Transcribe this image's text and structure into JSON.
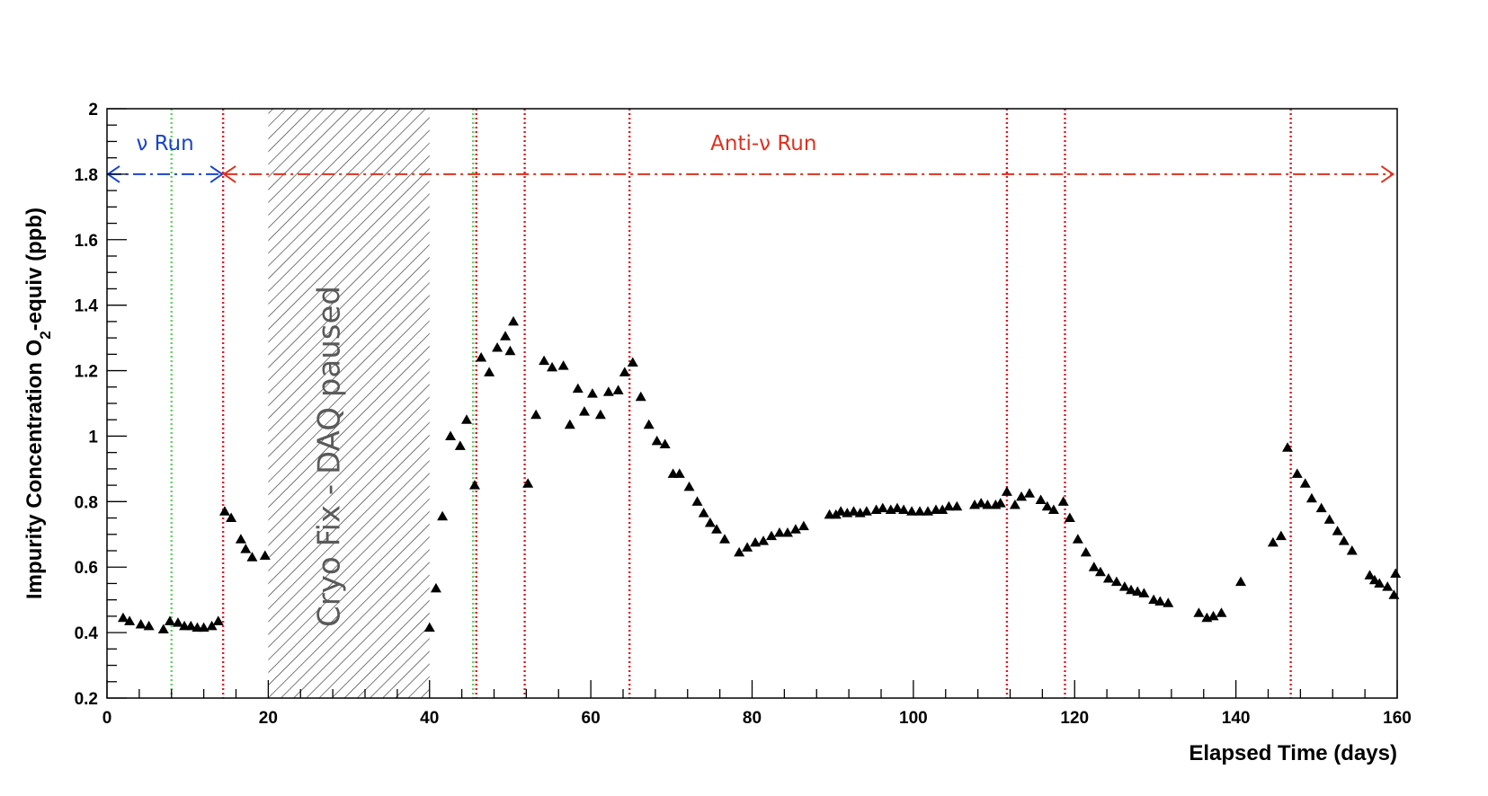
{
  "chart_data": {
    "type": "scatter",
    "xlabel": "Elapsed Time (days)",
    "ylabel_parts": [
      "Impurity Concentration O",
      "2",
      "-equiv (ppb)"
    ],
    "xlim": [
      0,
      160
    ],
    "ylim": [
      0.2,
      2.0
    ],
    "x_ticks": [
      0,
      20,
      40,
      60,
      80,
      100,
      120,
      140,
      160
    ],
    "x_tick_labels": [
      "0",
      "20",
      "40",
      "60",
      "80",
      "100",
      "120",
      "140",
      "160"
    ],
    "y_ticks": [
      0.2,
      0.4,
      0.6,
      0.8,
      1.0,
      1.2,
      1.4,
      1.6,
      1.8,
      2.0
    ],
    "y_tick_labels": [
      "0.2",
      "0.4",
      "0.6",
      "0.8",
      "1",
      "1.2",
      "1.4",
      "1.6",
      "1.8",
      "2"
    ],
    "marker": "triangle",
    "marker_color": "#000000",
    "points": [
      [
        2.0,
        0.445
      ],
      [
        2.8,
        0.435
      ],
      [
        4.2,
        0.425
      ],
      [
        5.2,
        0.42
      ],
      [
        7.0,
        0.41
      ],
      [
        7.8,
        0.435
      ],
      [
        8.8,
        0.43
      ],
      [
        9.6,
        0.42
      ],
      [
        10.4,
        0.42
      ],
      [
        11.2,
        0.415
      ],
      [
        12.0,
        0.415
      ],
      [
        13.0,
        0.42
      ],
      [
        13.8,
        0.435
      ],
      [
        14.6,
        0.77
      ],
      [
        15.4,
        0.75
      ],
      [
        16.6,
        0.685
      ],
      [
        17.2,
        0.655
      ],
      [
        18.0,
        0.63
      ],
      [
        19.6,
        0.635
      ],
      [
        40.0,
        0.415
      ],
      [
        40.8,
        0.535
      ],
      [
        41.6,
        0.755
      ],
      [
        42.6,
        1.0
      ],
      [
        43.8,
        0.97
      ],
      [
        44.6,
        1.05
      ],
      [
        45.6,
        0.85
      ],
      [
        46.4,
        1.24
      ],
      [
        47.4,
        1.195
      ],
      [
        48.4,
        1.27
      ],
      [
        49.4,
        1.305
      ],
      [
        50.0,
        1.26
      ],
      [
        50.4,
        1.35
      ],
      [
        52.2,
        0.855
      ],
      [
        53.2,
        1.065
      ],
      [
        54.2,
        1.23
      ],
      [
        55.2,
        1.21
      ],
      [
        56.6,
        1.215
      ],
      [
        57.4,
        1.035
      ],
      [
        58.4,
        1.145
      ],
      [
        59.2,
        1.075
      ],
      [
        60.2,
        1.13
      ],
      [
        61.2,
        1.065
      ],
      [
        62.2,
        1.135
      ],
      [
        63.4,
        1.14
      ],
      [
        64.2,
        1.195
      ],
      [
        65.2,
        1.225
      ],
      [
        66.2,
        1.12
      ],
      [
        67.2,
        1.035
      ],
      [
        68.2,
        0.985
      ],
      [
        69.2,
        0.975
      ],
      [
        70.2,
        0.885
      ],
      [
        71.0,
        0.885
      ],
      [
        72.2,
        0.845
      ],
      [
        73.2,
        0.8
      ],
      [
        74.0,
        0.765
      ],
      [
        74.8,
        0.735
      ],
      [
        75.6,
        0.715
      ],
      [
        76.6,
        0.685
      ],
      [
        78.4,
        0.645
      ],
      [
        79.4,
        0.66
      ],
      [
        80.4,
        0.675
      ],
      [
        81.4,
        0.68
      ],
      [
        82.4,
        0.695
      ],
      [
        83.4,
        0.705
      ],
      [
        84.4,
        0.705
      ],
      [
        85.4,
        0.715
      ],
      [
        86.4,
        0.725
      ],
      [
        89.6,
        0.76
      ],
      [
        90.4,
        0.76
      ],
      [
        91.0,
        0.77
      ],
      [
        91.8,
        0.765
      ],
      [
        92.6,
        0.77
      ],
      [
        93.4,
        0.765
      ],
      [
        94.2,
        0.77
      ],
      [
        95.4,
        0.775
      ],
      [
        96.2,
        0.78
      ],
      [
        97.2,
        0.775
      ],
      [
        98.0,
        0.78
      ],
      [
        98.8,
        0.775
      ],
      [
        99.8,
        0.77
      ],
      [
        100.8,
        0.77
      ],
      [
        101.8,
        0.77
      ],
      [
        102.8,
        0.775
      ],
      [
        103.6,
        0.775
      ],
      [
        104.4,
        0.785
      ],
      [
        105.4,
        0.785
      ],
      [
        107.6,
        0.79
      ],
      [
        108.4,
        0.795
      ],
      [
        109.2,
        0.79
      ],
      [
        110.2,
        0.79
      ],
      [
        110.8,
        0.795
      ],
      [
        111.6,
        0.83
      ],
      [
        112.6,
        0.79
      ],
      [
        113.4,
        0.815
      ],
      [
        114.4,
        0.825
      ],
      [
        115.8,
        0.805
      ],
      [
        116.6,
        0.785
      ],
      [
        117.4,
        0.775
      ],
      [
        118.6,
        0.8
      ],
      [
        119.4,
        0.75
      ],
      [
        120.4,
        0.685
      ],
      [
        121.4,
        0.645
      ],
      [
        122.4,
        0.6
      ],
      [
        123.2,
        0.585
      ],
      [
        124.2,
        0.565
      ],
      [
        125.2,
        0.555
      ],
      [
        126.2,
        0.54
      ],
      [
        127.0,
        0.53
      ],
      [
        127.8,
        0.525
      ],
      [
        128.6,
        0.52
      ],
      [
        129.8,
        0.5
      ],
      [
        130.6,
        0.495
      ],
      [
        131.6,
        0.49
      ],
      [
        135.4,
        0.46
      ],
      [
        136.4,
        0.445
      ],
      [
        137.2,
        0.45
      ],
      [
        138.2,
        0.46
      ],
      [
        140.6,
        0.555
      ],
      [
        144.6,
        0.675
      ],
      [
        145.6,
        0.695
      ],
      [
        146.4,
        0.965
      ],
      [
        147.6,
        0.885
      ],
      [
        148.6,
        0.855
      ],
      [
        149.4,
        0.81
      ],
      [
        150.6,
        0.78
      ],
      [
        151.6,
        0.745
      ],
      [
        152.6,
        0.71
      ],
      [
        153.4,
        0.68
      ],
      [
        154.4,
        0.65
      ],
      [
        156.6,
        0.575
      ],
      [
        157.2,
        0.56
      ],
      [
        157.8,
        0.55
      ],
      [
        158.8,
        0.54
      ],
      [
        159.6,
        0.515
      ],
      [
        159.8,
        0.58
      ]
    ],
    "red_dotted_lines_x": [
      14.4,
      45.8,
      51.8,
      64.8,
      111.6,
      118.8,
      146.8
    ],
    "green_dotted_lines_x": [
      8.0,
      45.4
    ],
    "shaded_region": {
      "x_range": [
        20,
        40
      ],
      "label": "Cryo Fix - DAQ paused"
    },
    "runs": [
      {
        "label": "ν Run",
        "x_range": [
          0,
          14.4
        ],
        "y": 1.8,
        "color": "#1a44cc"
      },
      {
        "label": "Anti-ν Run",
        "x_range": [
          14.4,
          159.6
        ],
        "y": 1.8,
        "color": "#e0301e"
      }
    ],
    "colors": {
      "red_line": "#e8151f",
      "green_line": "#5fd35f",
      "shading": "#333333"
    }
  }
}
